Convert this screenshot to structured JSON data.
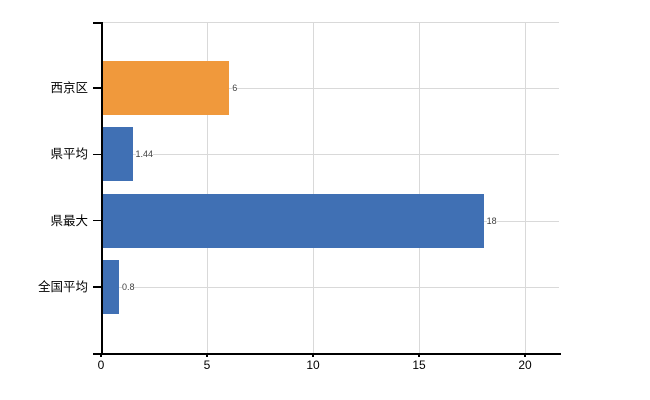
{
  "chart_data": {
    "type": "bar",
    "orientation": "horizontal",
    "title": "",
    "categories": [
      "西京区",
      "県平均",
      "県最大",
      "全国平均"
    ],
    "values": [
      6,
      1.44,
      18,
      0.8
    ],
    "data_labels": [
      "6",
      "1.44",
      "18",
      "0.8"
    ],
    "bar_colors": [
      "#F0993C",
      "#4070B4",
      "#4070B4",
      "#4070B4"
    ],
    "xticks": [
      0,
      5,
      10,
      15,
      20
    ],
    "xtick_labels": [
      "0",
      "5",
      "10",
      "15",
      "20"
    ],
    "xlim": [
      0,
      21.6
    ],
    "grid": true,
    "legend": false,
    "colors": {
      "axis": "#000000",
      "gridline": "#d9d9d9",
      "category_label": "#000000",
      "data_label": "#404040",
      "background": "#ffffff"
    }
  }
}
